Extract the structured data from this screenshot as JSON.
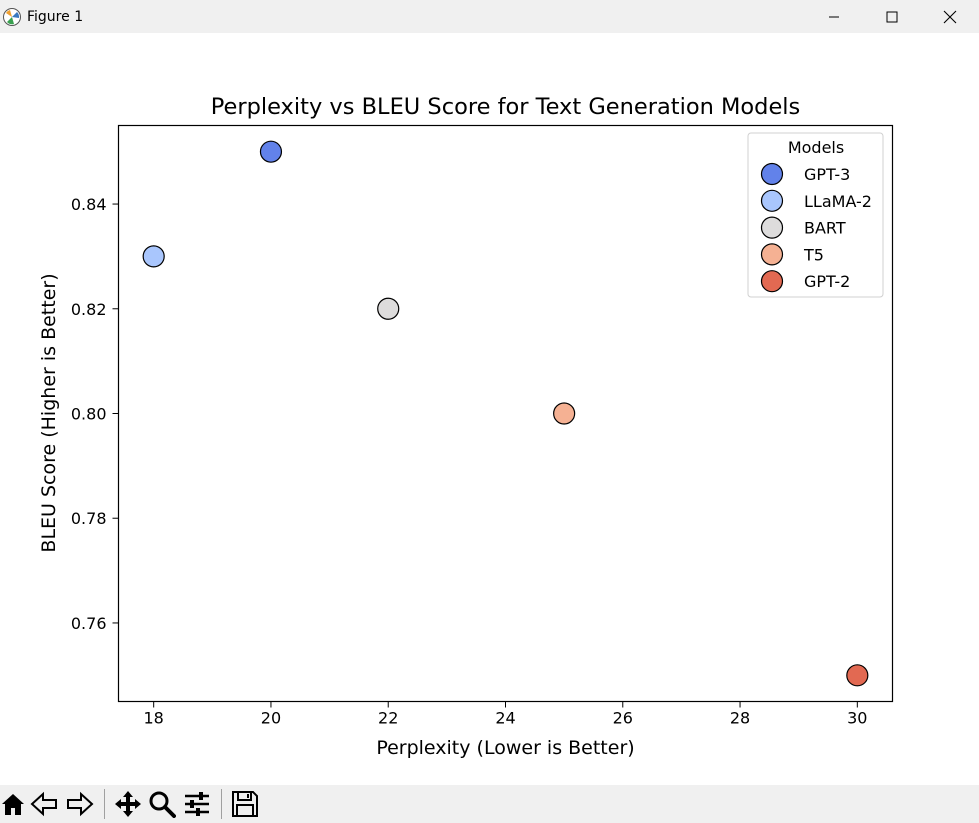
{
  "window": {
    "title": "Figure 1"
  },
  "toolbar": {
    "buttons": [
      "home-icon",
      "back-arrow-icon",
      "forward-arrow-icon",
      "pan-icon",
      "zoom-icon",
      "configure-subplots-icon",
      "save-icon"
    ]
  },
  "chart_data": {
    "type": "scatter",
    "title": "Perplexity vs BLEU Score for Text Generation Models",
    "xlabel": "Perplexity (Lower is Better)",
    "ylabel": "BLEU Score (Higher is Better)",
    "xlim": [
      17.4,
      30.6
    ],
    "ylim": [
      0.745,
      0.855
    ],
    "xticks": [
      18,
      20,
      22,
      24,
      26,
      28,
      30
    ],
    "yticks": [
      0.76,
      0.78,
      0.8,
      0.82,
      0.84
    ],
    "xtick_labels": [
      "18",
      "20",
      "22",
      "24",
      "26",
      "28",
      "30"
    ],
    "ytick_labels": [
      "0.76",
      "0.78",
      "0.80",
      "0.82",
      "0.84"
    ],
    "legend": {
      "title": "Models",
      "position": "top-right"
    },
    "series": [
      {
        "name": "GPT-3",
        "x": 20,
        "y": 0.85,
        "color": "#6282ea"
      },
      {
        "name": "LLaMA-2",
        "x": 18,
        "y": 0.83,
        "color": "#a9c6fd"
      },
      {
        "name": "BART",
        "x": 22,
        "y": 0.82,
        "color": "#dddcdc"
      },
      {
        "name": "T5",
        "x": 25,
        "y": 0.8,
        "color": "#f5b193"
      },
      {
        "name": "GPT-2",
        "x": 30,
        "y": 0.75,
        "color": "#e26952"
      }
    ]
  }
}
